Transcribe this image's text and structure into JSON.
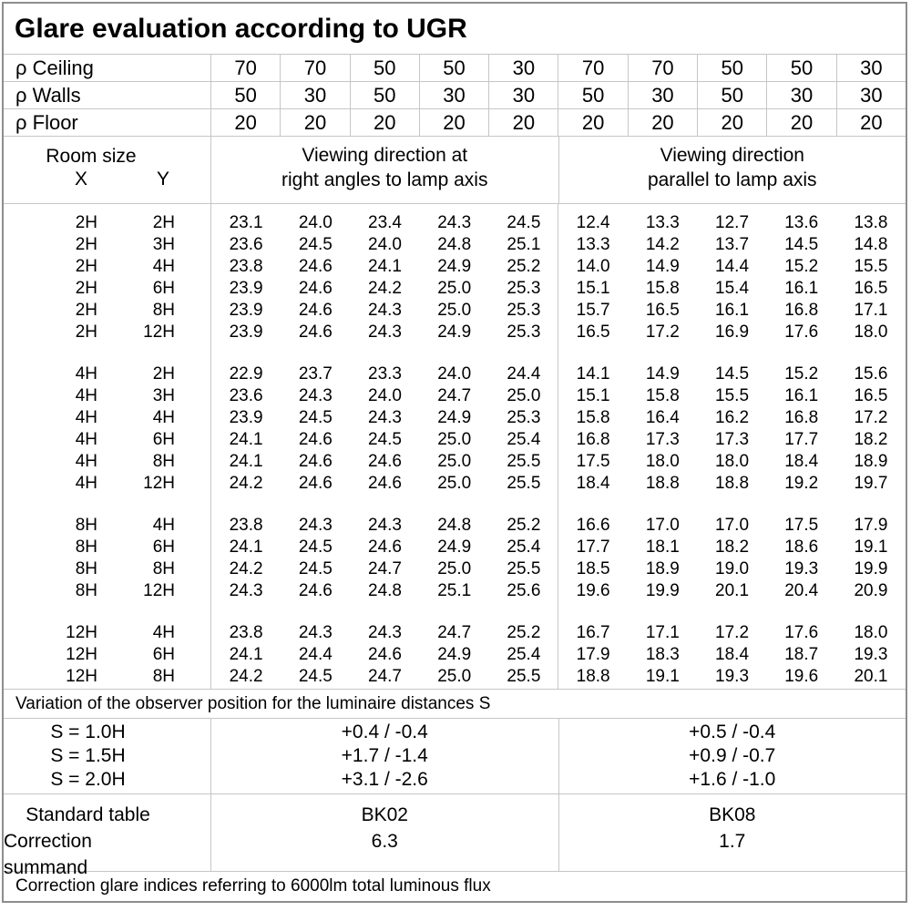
{
  "title": "Glare evaluation according to UGR",
  "colors": {
    "grid": "#c6c6c6",
    "outer_border": "#8d8d8d",
    "text": "#000000",
    "background": "#ffffff"
  },
  "refl": {
    "ceiling_label": "ρ Ceiling",
    "walls_label": "ρ Walls",
    "floor_label": "ρ Floor",
    "ceiling": [
      "70",
      "70",
      "50",
      "50",
      "30",
      "70",
      "70",
      "50",
      "50",
      "30"
    ],
    "walls": [
      "50",
      "30",
      "50",
      "30",
      "30",
      "50",
      "30",
      "50",
      "30",
      "30"
    ],
    "floor": [
      "20",
      "20",
      "20",
      "20",
      "20",
      "20",
      "20",
      "20",
      "20",
      "20"
    ]
  },
  "header": {
    "room_size": "Room size",
    "x": "X",
    "y": "Y",
    "g1_line1": "Viewing direction at",
    "g1_line2": "right angles to lamp axis",
    "g2_line1": "Viewing direction",
    "g2_line2": "parallel to lamp axis"
  },
  "d": {
    "g1": [
      [
        "2H",
        "2H",
        "23.1",
        "24.0",
        "23.4",
        "24.3",
        "24.5",
        "12.4",
        "13.3",
        "12.7",
        "13.6",
        "13.8"
      ],
      [
        "2H",
        "3H",
        "23.6",
        "24.5",
        "24.0",
        "24.8",
        "25.1",
        "13.3",
        "14.2",
        "13.7",
        "14.5",
        "14.8"
      ],
      [
        "2H",
        "4H",
        "23.8",
        "24.6",
        "24.1",
        "24.9",
        "25.2",
        "14.0",
        "14.9",
        "14.4",
        "15.2",
        "15.5"
      ],
      [
        "2H",
        "6H",
        "23.9",
        "24.6",
        "24.2",
        "25.0",
        "25.3",
        "15.1",
        "15.8",
        "15.4",
        "16.1",
        "16.5"
      ],
      [
        "2H",
        "8H",
        "23.9",
        "24.6",
        "24.3",
        "25.0",
        "25.3",
        "15.7",
        "16.5",
        "16.1",
        "16.8",
        "17.1"
      ],
      [
        "2H",
        "12H",
        "23.9",
        "24.6",
        "24.3",
        "24.9",
        "25.3",
        "16.5",
        "17.2",
        "16.9",
        "17.6",
        "18.0"
      ]
    ],
    "g2": [
      [
        "4H",
        "2H",
        "22.9",
        "23.7",
        "23.3",
        "24.0",
        "24.4",
        "14.1",
        "14.9",
        "14.5",
        "15.2",
        "15.6"
      ],
      [
        "4H",
        "3H",
        "23.6",
        "24.3",
        "24.0",
        "24.7",
        "25.0",
        "15.1",
        "15.8",
        "15.5",
        "16.1",
        "16.5"
      ],
      [
        "4H",
        "4H",
        "23.9",
        "24.5",
        "24.3",
        "24.9",
        "25.3",
        "15.8",
        "16.4",
        "16.2",
        "16.8",
        "17.2"
      ],
      [
        "4H",
        "6H",
        "24.1",
        "24.6",
        "24.5",
        "25.0",
        "25.4",
        "16.8",
        "17.3",
        "17.3",
        "17.7",
        "18.2"
      ],
      [
        "4H",
        "8H",
        "24.1",
        "24.6",
        "24.6",
        "25.0",
        "25.5",
        "17.5",
        "18.0",
        "18.0",
        "18.4",
        "18.9"
      ],
      [
        "4H",
        "12H",
        "24.2",
        "24.6",
        "24.6",
        "25.0",
        "25.5",
        "18.4",
        "18.8",
        "18.8",
        "19.2",
        "19.7"
      ]
    ],
    "g3": [
      [
        "8H",
        "4H",
        "23.8",
        "24.3",
        "24.3",
        "24.8",
        "25.2",
        "16.6",
        "17.0",
        "17.0",
        "17.5",
        "17.9"
      ],
      [
        "8H",
        "6H",
        "24.1",
        "24.5",
        "24.6",
        "24.9",
        "25.4",
        "17.7",
        "18.1",
        "18.2",
        "18.6",
        "19.1"
      ],
      [
        "8H",
        "8H",
        "24.2",
        "24.5",
        "24.7",
        "25.0",
        "25.5",
        "18.5",
        "18.9",
        "19.0",
        "19.3",
        "19.9"
      ],
      [
        "8H",
        "12H",
        "24.3",
        "24.6",
        "24.8",
        "25.1",
        "25.6",
        "19.6",
        "19.9",
        "20.1",
        "20.4",
        "20.9"
      ]
    ],
    "g4": [
      [
        "12H",
        "4H",
        "23.8",
        "24.3",
        "24.3",
        "24.7",
        "25.2",
        "16.7",
        "17.1",
        "17.2",
        "17.6",
        "18.0"
      ],
      [
        "12H",
        "6H",
        "24.1",
        "24.4",
        "24.6",
        "24.9",
        "25.4",
        "17.9",
        "18.3",
        "18.4",
        "18.7",
        "19.3"
      ],
      [
        "12H",
        "8H",
        "24.2",
        "24.5",
        "24.7",
        "25.0",
        "25.5",
        "18.8",
        "19.1",
        "19.3",
        "19.6",
        "20.1"
      ]
    ]
  },
  "variation_note": "Variation of the observer position for the luminaire distances S",
  "s_block": {
    "labels": [
      "S = 1.0H",
      "S = 1.5H",
      "S = 2.0H"
    ],
    "right_angle": [
      "+0.4 / -0.4",
      "+1.7 / -1.4",
      "+3.1 / -2.6"
    ],
    "parallel": [
      "+0.5 / -0.4",
      "+0.9 / -0.7",
      "+1.6 / -1.0"
    ]
  },
  "standard_block": {
    "labels": [
      "Standard table",
      "Correction summand"
    ],
    "right_angle": [
      "BK02",
      "6.3"
    ],
    "parallel": [
      "BK08",
      "1.7"
    ]
  },
  "footer_note": "Correction glare indices referring to 6000lm total luminous flux"
}
